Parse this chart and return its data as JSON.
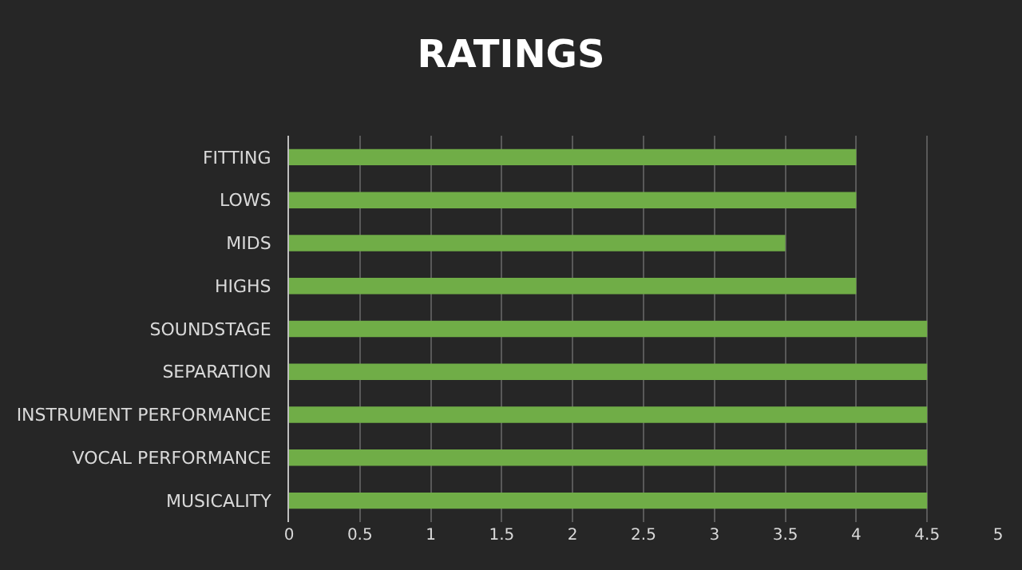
{
  "chart_data": {
    "type": "bar",
    "orientation": "horizontal",
    "title": "RATINGS",
    "categories": [
      "FITTING",
      "LOWS",
      "MIDS",
      "HIGHS",
      "SOUNDSTAGE",
      "SEPARATION",
      "INSTRUMENT PERFORMANCE",
      "VOCAL PERFORMANCE",
      "MUSICALITY"
    ],
    "values": [
      4,
      4,
      3.5,
      4,
      4.5,
      4.5,
      4.5,
      4.5,
      4.5
    ],
    "color": "#70ad47",
    "xlim": [
      0,
      5
    ],
    "xticks": [
      0,
      0.5,
      1,
      1.5,
      2,
      2.5,
      3,
      3.5,
      4,
      4.5,
      5
    ],
    "grid": "x",
    "legend": false
  }
}
